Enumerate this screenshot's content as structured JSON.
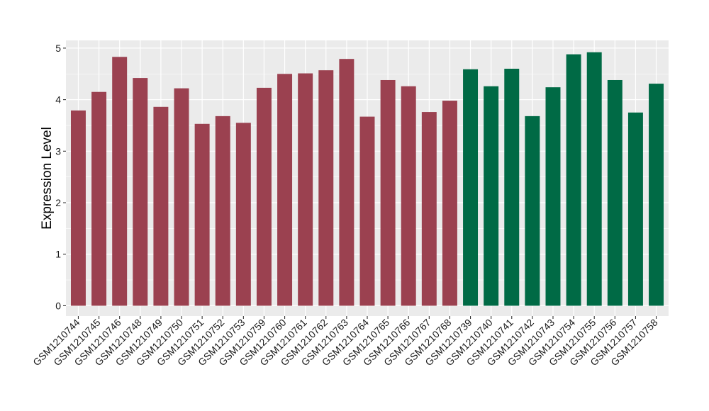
{
  "chart_data": {
    "type": "bar",
    "title": "",
    "xlabel": "",
    "ylabel": "Expression Level",
    "ylim": [
      -0.2,
      5.15
    ],
    "yticks": [
      0,
      1,
      2,
      3,
      4,
      5
    ],
    "grid": true,
    "legend": "none",
    "background": "#EBEBEB",
    "grid_color": "#FFFFFF",
    "series": [
      {
        "color": "#9B4150",
        "categories": [
          "GSM1210744",
          "GSM1210745",
          "GSM1210746",
          "GSM1210748",
          "GSM1210749",
          "GSM1210750",
          "GSM1210751",
          "GSM1210752",
          "GSM1210753",
          "GSM1210759",
          "GSM1210760",
          "GSM1210761",
          "GSM1210762",
          "GSM1210763",
          "GSM1210764",
          "GSM1210765",
          "GSM1210766",
          "GSM1210767",
          "GSM1210768"
        ],
        "values": [
          3.79,
          4.15,
          4.83,
          4.42,
          3.86,
          4.22,
          3.53,
          3.68,
          3.55,
          4.23,
          4.5,
          4.51,
          4.57,
          4.79,
          3.67,
          4.38,
          4.26,
          3.76,
          3.98
        ]
      },
      {
        "color": "#006A45",
        "categories": [
          "GSM1210739",
          "GSM1210740",
          "GSM1210741",
          "GSM1210742",
          "GSM1210743",
          "GSM1210754",
          "GSM1210755",
          "GSM1210756",
          "GSM1210757",
          "GSM1210758"
        ],
        "values": [
          4.59,
          4.26,
          4.6,
          3.68,
          4.24,
          4.88,
          4.92,
          4.38,
          3.75,
          4.31
        ]
      }
    ]
  }
}
